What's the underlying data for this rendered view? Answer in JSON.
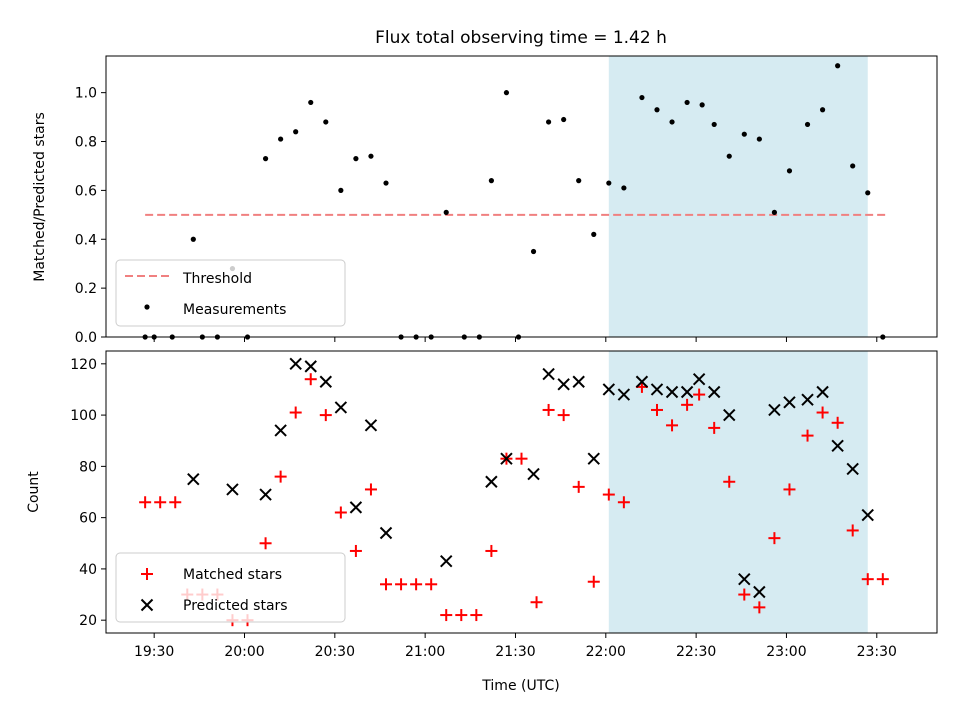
{
  "title": "Flux total observing time = 1.42 h",
  "xlabel": "Time (UTC)",
  "colors": {
    "threshold": "#f08080",
    "measurement": "#000000",
    "matched": "#ff0000",
    "predicted": "#000000",
    "highlight": "#add8e6"
  },
  "chart_data": [
    {
      "type": "scatter",
      "name": "ratio-panel",
      "ylabel": "Matched/Predicted stars",
      "ylim": [
        0,
        1.15
      ],
      "xlim": [
        "19:14",
        "23:50"
      ],
      "yticks": [
        "0.0",
        "0.2",
        "0.4",
        "0.6",
        "0.8",
        "1.0"
      ],
      "highlight_span": [
        "22:01",
        "23:27"
      ],
      "threshold": {
        "name": "Threshold",
        "x": [
          "19:27",
          "23:33"
        ],
        "y": 0.5
      },
      "series": [
        {
          "name": "Measurements",
          "marker": "dot",
          "points": [
            [
              "19:27",
              0.0
            ],
            [
              "19:30",
              0.0
            ],
            [
              "19:36",
              0.0
            ],
            [
              "19:43",
              0.4
            ],
            [
              "19:46",
              0.0
            ],
            [
              "19:51",
              0.0
            ],
            [
              "19:56",
              0.28
            ],
            [
              "20:01",
              0.0
            ],
            [
              "20:07",
              0.73
            ],
            [
              "20:12",
              0.81
            ],
            [
              "20:17",
              0.84
            ],
            [
              "20:22",
              0.96
            ],
            [
              "20:27",
              0.88
            ],
            [
              "20:32",
              0.6
            ],
            [
              "20:37",
              0.73
            ],
            [
              "20:42",
              0.74
            ],
            [
              "20:47",
              0.63
            ],
            [
              "20:52",
              0.0
            ],
            [
              "20:57",
              0.0
            ],
            [
              "21:02",
              0.0
            ],
            [
              "21:07",
              0.51
            ],
            [
              "21:13",
              0.0
            ],
            [
              "21:18",
              0.0
            ],
            [
              "21:22",
              0.64
            ],
            [
              "21:27",
              1.0
            ],
            [
              "21:31",
              0.0
            ],
            [
              "21:36",
              0.35
            ],
            [
              "21:41",
              0.88
            ],
            [
              "21:46",
              0.89
            ],
            [
              "21:51",
              0.64
            ],
            [
              "21:56",
              0.42
            ],
            [
              "22:01",
              0.63
            ],
            [
              "22:06",
              0.61
            ],
            [
              "22:12",
              0.98
            ],
            [
              "22:17",
              0.93
            ],
            [
              "22:22",
              0.88
            ],
            [
              "22:27",
              0.96
            ],
            [
              "22:32",
              0.95
            ],
            [
              "22:36",
              0.87
            ],
            [
              "22:41",
              0.74
            ],
            [
              "22:46",
              0.83
            ],
            [
              "22:51",
              0.81
            ],
            [
              "22:56",
              0.51
            ],
            [
              "23:01",
              0.68
            ],
            [
              "23:07",
              0.87
            ],
            [
              "23:12",
              0.93
            ],
            [
              "23:17",
              1.11
            ],
            [
              "23:22",
              0.7
            ],
            [
              "23:27",
              0.59
            ],
            [
              "23:32",
              0.0
            ]
          ]
        }
      ],
      "legend": {
        "position": "lower left",
        "entries": [
          "Threshold",
          "Measurements"
        ]
      }
    },
    {
      "type": "scatter",
      "name": "count-panel",
      "ylabel": "Count",
      "ylim": [
        15,
        125
      ],
      "xlim": [
        "19:14",
        "23:50"
      ],
      "yticks": [
        "20",
        "40",
        "60",
        "80",
        "100",
        "120"
      ],
      "xticks": [
        "19:30",
        "20:00",
        "20:30",
        "21:00",
        "21:30",
        "22:00",
        "22:30",
        "23:00",
        "23:30"
      ],
      "highlight_span": [
        "22:01",
        "23:27"
      ],
      "series": [
        {
          "name": "Matched stars",
          "marker": "plus",
          "points": [
            [
              "19:27",
              66
            ],
            [
              "19:32",
              66
            ],
            [
              "19:37",
              66
            ],
            [
              "19:41",
              30
            ],
            [
              "19:46",
              30
            ],
            [
              "19:51",
              30
            ],
            [
              "19:56",
              20
            ],
            [
              "20:01",
              20
            ],
            [
              "20:07",
              50
            ],
            [
              "20:12",
              76
            ],
            [
              "20:17",
              101
            ],
            [
              "20:22",
              114
            ],
            [
              "20:27",
              100
            ],
            [
              "20:32",
              62
            ],
            [
              "20:37",
              47
            ],
            [
              "20:42",
              71
            ],
            [
              "20:47",
              34
            ],
            [
              "20:52",
              34
            ],
            [
              "20:57",
              34
            ],
            [
              "21:02",
              34
            ],
            [
              "21:07",
              22
            ],
            [
              "21:12",
              22
            ],
            [
              "21:17",
              22
            ],
            [
              "21:22",
              47
            ],
            [
              "21:27",
              83
            ],
            [
              "21:32",
              83
            ],
            [
              "21:37",
              27
            ],
            [
              "21:41",
              102
            ],
            [
              "21:46",
              100
            ],
            [
              "21:51",
              72
            ],
            [
              "21:56",
              35
            ],
            [
              "22:01",
              69
            ],
            [
              "22:06",
              66
            ],
            [
              "22:12",
              111
            ],
            [
              "22:17",
              102
            ],
            [
              "22:22",
              96
            ],
            [
              "22:27",
              104
            ],
            [
              "22:31",
              108
            ],
            [
              "22:36",
              95
            ],
            [
              "22:41",
              74
            ],
            [
              "22:46",
              30
            ],
            [
              "22:51",
              25
            ],
            [
              "22:56",
              52
            ],
            [
              "23:01",
              71
            ],
            [
              "23:07",
              92
            ],
            [
              "23:12",
              101
            ],
            [
              "23:17",
              97
            ],
            [
              "23:22",
              55
            ],
            [
              "23:27",
              36
            ],
            [
              "23:32",
              36
            ]
          ]
        },
        {
          "name": "Predicted stars",
          "marker": "x",
          "points": [
            [
              "19:43",
              75
            ],
            [
              "19:56",
              71
            ],
            [
              "20:07",
              69
            ],
            [
              "20:12",
              94
            ],
            [
              "20:17",
              120
            ],
            [
              "20:22",
              119
            ],
            [
              "20:27",
              113
            ],
            [
              "20:32",
              103
            ],
            [
              "20:37",
              64
            ],
            [
              "20:42",
              96
            ],
            [
              "20:47",
              54
            ],
            [
              "21:07",
              43
            ],
            [
              "21:22",
              74
            ],
            [
              "21:27",
              83
            ],
            [
              "21:36",
              77
            ],
            [
              "21:41",
              116
            ],
            [
              "21:46",
              112
            ],
            [
              "21:51",
              113
            ],
            [
              "21:56",
              83
            ],
            [
              "22:01",
              110
            ],
            [
              "22:06",
              108
            ],
            [
              "22:12",
              113
            ],
            [
              "22:17",
              110
            ],
            [
              "22:22",
              109
            ],
            [
              "22:27",
              109
            ],
            [
              "22:31",
              114
            ],
            [
              "22:36",
              109
            ],
            [
              "22:41",
              100
            ],
            [
              "22:46",
              36
            ],
            [
              "22:51",
              31
            ],
            [
              "22:56",
              102
            ],
            [
              "23:01",
              105
            ],
            [
              "23:07",
              106
            ],
            [
              "23:12",
              109
            ],
            [
              "23:17",
              88
            ],
            [
              "23:22",
              79
            ],
            [
              "23:27",
              61
            ]
          ]
        }
      ],
      "legend": {
        "position": "lower left",
        "entries": [
          "Matched stars",
          "Predicted stars"
        ]
      }
    }
  ]
}
